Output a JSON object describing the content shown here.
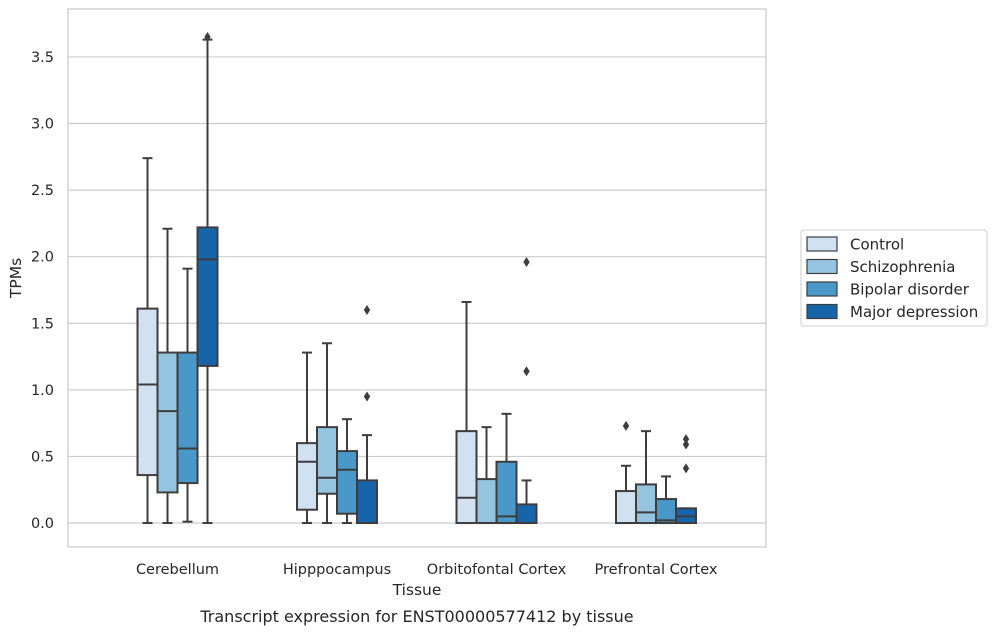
{
  "chart_data": {
    "type": "box",
    "title": "",
    "caption": "Transcript expression for ENST00000577412 by tissue",
    "xlabel": "Tissue",
    "ylabel": "TPMs",
    "ylim": [
      -0.18,
      3.86
    ],
    "yticks": [
      0.0,
      0.5,
      1.0,
      1.5,
      2.0,
      2.5,
      3.0,
      3.5
    ],
    "ytick_labels": [
      "0.0",
      "0.5",
      "1.0",
      "1.5",
      "2.0",
      "2.5",
      "3.0",
      "3.5"
    ],
    "grid": "horizontal",
    "legend_placement": "outside-right",
    "categories": [
      "Cerebellum",
      "Hipppocampus",
      "Orbitofontal Cortex",
      "Prefrontal Cortex"
    ],
    "series": [
      {
        "name": "Control",
        "color": "#d0e1f2",
        "boxes": [
          {
            "whislo": 0.0,
            "q1": 0.36,
            "med": 1.04,
            "q3": 1.61,
            "whishi": 2.74,
            "fliers": []
          },
          {
            "whislo": 0.0,
            "q1": 0.1,
            "med": 0.46,
            "q3": 0.6,
            "whishi": 1.28,
            "fliers": []
          },
          {
            "whislo": 0.0,
            "q1": 0.0,
            "med": 0.19,
            "q3": 0.69,
            "whishi": 1.66,
            "fliers": []
          },
          {
            "whislo": 0.0,
            "q1": 0.0,
            "med": 0.0,
            "q3": 0.24,
            "whishi": 0.43,
            "fliers": [
              0.73
            ]
          }
        ]
      },
      {
        "name": "Schizophrenia",
        "color": "#94c4df",
        "boxes": [
          {
            "whislo": 0.0,
            "q1": 0.23,
            "med": 0.84,
            "q3": 1.28,
            "whishi": 2.21,
            "fliers": []
          },
          {
            "whislo": 0.0,
            "q1": 0.22,
            "med": 0.34,
            "q3": 0.72,
            "whishi": 1.35,
            "fliers": []
          },
          {
            "whislo": 0.0,
            "q1": 0.0,
            "med": 0.0,
            "q3": 0.33,
            "whishi": 0.72,
            "fliers": []
          },
          {
            "whislo": 0.0,
            "q1": 0.0,
            "med": 0.08,
            "q3": 0.29,
            "whishi": 0.69,
            "fliers": []
          }
        ]
      },
      {
        "name": "Bipolar disorder",
        "color": "#4a98c9",
        "boxes": [
          {
            "whislo": 0.01,
            "q1": 0.3,
            "med": 0.56,
            "q3": 1.28,
            "whishi": 1.91,
            "fliers": []
          },
          {
            "whislo": 0.0,
            "q1": 0.07,
            "med": 0.4,
            "q3": 0.54,
            "whishi": 0.78,
            "fliers": []
          },
          {
            "whislo": 0.0,
            "q1": 0.0,
            "med": 0.05,
            "q3": 0.46,
            "whishi": 0.82,
            "fliers": []
          },
          {
            "whislo": 0.0,
            "q1": 0.0,
            "med": 0.02,
            "q3": 0.18,
            "whishi": 0.35,
            "fliers": []
          }
        ]
      },
      {
        "name": "Major depression",
        "color": "#1764ab",
        "boxes": [
          {
            "whislo": 0.0,
            "q1": 1.18,
            "med": 1.98,
            "q3": 2.22,
            "whishi": 3.63,
            "fliers": [
              3.65
            ]
          },
          {
            "whislo": 0.0,
            "q1": 0.0,
            "med": 0.0,
            "q3": 0.32,
            "whishi": 0.66,
            "fliers": [
              0.95,
              1.6
            ]
          },
          {
            "whislo": 0.0,
            "q1": 0.0,
            "med": 0.0,
            "q3": 0.14,
            "whishi": 0.32,
            "fliers": [
              1.14,
              1.96
            ]
          },
          {
            "whislo": 0.0,
            "q1": 0.0,
            "med": 0.05,
            "q3": 0.11,
            "whishi": 0.11,
            "fliers": [
              0.41,
              0.59,
              0.63
            ]
          }
        ]
      }
    ]
  }
}
